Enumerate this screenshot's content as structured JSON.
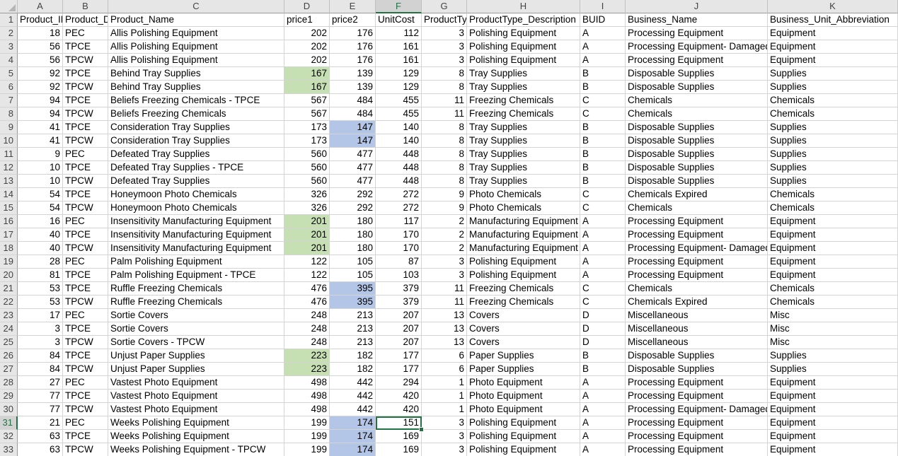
{
  "columns": [
    {
      "letter": "A"
    },
    {
      "letter": "B"
    },
    {
      "letter": "C"
    },
    {
      "letter": "D"
    },
    {
      "letter": "E"
    },
    {
      "letter": "F"
    },
    {
      "letter": "G"
    },
    {
      "letter": "H"
    },
    {
      "letter": "I"
    },
    {
      "letter": "J"
    },
    {
      "letter": "K"
    }
  ],
  "active_cell": {
    "column": "F",
    "row": 31
  },
  "highlight_colors": {
    "green": "#c6e0b4",
    "blue": "#b4c6e7",
    "selection": "#217346"
  },
  "header_row": [
    "Product_ID",
    "Product_Division",
    "Product_Name",
    "price1",
    "price2",
    "UnitCost",
    "ProductType",
    "ProductType_Description",
    "BUID",
    "Business_Name",
    "Business_Unit_Abbreviation"
  ],
  "rows": [
    {
      "n": "2",
      "v": [
        "18",
        "PEC",
        "Allis Polishing Equipment",
        "202",
        "176",
        "112",
        "3",
        "Polishing Equipment",
        "A",
        "Processing Equipment",
        "Equipment"
      ],
      "hl": {}
    },
    {
      "n": "3",
      "v": [
        "56",
        "TPCE",
        "Allis Polishing Equipment",
        "202",
        "176",
        "161",
        "3",
        "Polishing Equipment",
        "A",
        "Processing Equipment- Damaged",
        "Equipment"
      ],
      "hl": {}
    },
    {
      "n": "4",
      "v": [
        "56",
        "TPCW",
        "Allis Polishing Equipment",
        "202",
        "176",
        "161",
        "3",
        "Polishing Equipment",
        "A",
        "Processing Equipment",
        "Equipment"
      ],
      "hl": {}
    },
    {
      "n": "5",
      "v": [
        "92",
        "TPCE",
        "Behind Tray Supplies",
        "167",
        "139",
        "129",
        "8",
        "Tray Supplies",
        "B",
        "Disposable Supplies",
        "Supplies"
      ],
      "hl": {
        "3": "green"
      }
    },
    {
      "n": "6",
      "v": [
        "92",
        "TPCW",
        "Behind Tray Supplies",
        "167",
        "139",
        "129",
        "8",
        "Tray Supplies",
        "B",
        "Disposable Supplies",
        "Supplies"
      ],
      "hl": {
        "3": "green"
      }
    },
    {
      "n": "7",
      "v": [
        "94",
        "TPCE",
        "Beliefs Freezing Chemicals - TPCE",
        "567",
        "484",
        "455",
        "11",
        "Freezing Chemicals",
        "C",
        "Chemicals",
        "Chemicals"
      ],
      "hl": {}
    },
    {
      "n": "8",
      "v": [
        "94",
        "TPCW",
        "Beliefs Freezing Chemicals",
        "567",
        "484",
        "455",
        "11",
        "Freezing Chemicals",
        "C",
        "Chemicals",
        "Chemicals"
      ],
      "hl": {}
    },
    {
      "n": "9",
      "v": [
        "41",
        "TPCE",
        "Consideration Tray Supplies",
        "173",
        "147",
        "140",
        "8",
        "Tray Supplies",
        "B",
        "Disposable Supplies",
        "Supplies"
      ],
      "hl": {
        "4": "blue"
      }
    },
    {
      "n": "10",
      "v": [
        "41",
        "TPCW",
        "Consideration Tray Supplies",
        "173",
        "147",
        "140",
        "8",
        "Tray Supplies",
        "B",
        "Disposable Supplies",
        "Supplies"
      ],
      "hl": {
        "4": "blue"
      }
    },
    {
      "n": "11",
      "v": [
        "9",
        "PEC",
        "Defeated Tray Supplies",
        "560",
        "477",
        "448",
        "8",
        "Tray Supplies",
        "B",
        "Disposable Supplies",
        "Supplies"
      ],
      "hl": {}
    },
    {
      "n": "12",
      "v": [
        "10",
        "TPCE",
        "Defeated Tray Supplies - TPCE",
        "560",
        "477",
        "448",
        "8",
        "Tray Supplies",
        "B",
        "Disposable Supplies",
        "Supplies"
      ],
      "hl": {}
    },
    {
      "n": "13",
      "v": [
        "10",
        "TPCW",
        "Defeated Tray Supplies",
        "560",
        "477",
        "448",
        "8",
        "Tray Supplies",
        "B",
        "Disposable Supplies",
        "Supplies"
      ],
      "hl": {}
    },
    {
      "n": "14",
      "v": [
        "54",
        "TPCE",
        "Honeymoon Photo Chemicals",
        "326",
        "292",
        "272",
        "9",
        "Photo Chemicals",
        "C",
        "Chemicals Expired",
        "Chemicals"
      ],
      "hl": {}
    },
    {
      "n": "15",
      "v": [
        "54",
        "TPCW",
        "Honeymoon Photo Chemicals",
        "326",
        "292",
        "272",
        "9",
        "Photo Chemicals",
        "C",
        "Chemicals",
        "Chemicals"
      ],
      "hl": {}
    },
    {
      "n": "16",
      "v": [
        "16",
        "PEC",
        "Insensitivity Manufacturing Equipment",
        "201",
        "180",
        "117",
        "2",
        "Manufacturing Equipment",
        "A",
        "Processing Equipment",
        "Equipment"
      ],
      "hl": {
        "3": "green"
      }
    },
    {
      "n": "17",
      "v": [
        "40",
        "TPCE",
        "Insensitivity Manufacturing Equipment",
        "201",
        "180",
        "170",
        "2",
        "Manufacturing Equipment",
        "A",
        "Processing Equipment",
        "Equipment"
      ],
      "hl": {
        "3": "green"
      }
    },
    {
      "n": "18",
      "v": [
        "40",
        "TPCW",
        "Insensitivity Manufacturing Equipment",
        "201",
        "180",
        "170",
        "2",
        "Manufacturing Equipment",
        "A",
        "Processing Equipment- Damaged",
        "Equipment"
      ],
      "hl": {
        "3": "green"
      }
    },
    {
      "n": "19",
      "v": [
        "28",
        "PEC",
        "Palm Polishing Equipment",
        "122",
        "105",
        "87",
        "3",
        "Polishing Equipment",
        "A",
        "Processing Equipment",
        "Equipment"
      ],
      "hl": {}
    },
    {
      "n": "20",
      "v": [
        "81",
        "TPCE",
        "Palm Polishing Equipment - TPCE",
        "122",
        "105",
        "103",
        "3",
        "Polishing Equipment",
        "A",
        "Processing Equipment",
        "Equipment"
      ],
      "hl": {}
    },
    {
      "n": "21",
      "v": [
        "53",
        "TPCE",
        "Ruffle Freezing Chemicals",
        "476",
        "395",
        "379",
        "11",
        "Freezing Chemicals",
        "C",
        "Chemicals",
        "Chemicals"
      ],
      "hl": {
        "4": "blue"
      }
    },
    {
      "n": "22",
      "v": [
        "53",
        "TPCW",
        "Ruffle Freezing Chemicals",
        "476",
        "395",
        "379",
        "11",
        "Freezing Chemicals",
        "C",
        "Chemicals Expired",
        "Chemicals"
      ],
      "hl": {
        "4": "blue"
      }
    },
    {
      "n": "23",
      "v": [
        "17",
        "PEC",
        "Sortie Covers",
        "248",
        "213",
        "207",
        "13",
        "Covers",
        "D",
        "Miscellaneous",
        "Misc"
      ],
      "hl": {}
    },
    {
      "n": "24",
      "v": [
        "3",
        "TPCE",
        "Sortie Covers",
        "248",
        "213",
        "207",
        "13",
        "Covers",
        "D",
        "Miscellaneous",
        "Misc"
      ],
      "hl": {}
    },
    {
      "n": "25",
      "v": [
        "3",
        "TPCW",
        "Sortie Covers - TPCW",
        "248",
        "213",
        "207",
        "13",
        "Covers",
        "D",
        "Miscellaneous",
        "Misc"
      ],
      "hl": {}
    },
    {
      "n": "26",
      "v": [
        "84",
        "TPCE",
        "Unjust Paper Supplies",
        "223",
        "182",
        "177",
        "6",
        "Paper Supplies",
        "B",
        "Disposable Supplies",
        "Supplies"
      ],
      "hl": {
        "3": "green"
      }
    },
    {
      "n": "27",
      "v": [
        "84",
        "TPCW",
        "Unjust Paper Supplies",
        "223",
        "182",
        "177",
        "6",
        "Paper Supplies",
        "B",
        "Disposable Supplies",
        "Supplies"
      ],
      "hl": {
        "3": "green"
      }
    },
    {
      "n": "28",
      "v": [
        "27",
        "PEC",
        "Vastest Photo Equipment",
        "498",
        "442",
        "294",
        "1",
        "Photo Equipment",
        "A",
        "Processing Equipment",
        "Equipment"
      ],
      "hl": {}
    },
    {
      "n": "29",
      "v": [
        "77",
        "TPCE",
        "Vastest Photo Equipment",
        "498",
        "442",
        "420",
        "1",
        "Photo Equipment",
        "A",
        "Processing Equipment",
        "Equipment"
      ],
      "hl": {}
    },
    {
      "n": "30",
      "v": [
        "77",
        "TPCW",
        "Vastest Photo Equipment",
        "498",
        "442",
        "420",
        "1",
        "Photo Equipment",
        "A",
        "Processing Equipment- Damaged",
        "Equipment"
      ],
      "hl": {}
    },
    {
      "n": "31",
      "v": [
        "21",
        "PEC",
        "Weeks Polishing Equipment",
        "199",
        "174",
        "151",
        "3",
        "Polishing Equipment",
        "A",
        "Processing Equipment",
        "Equipment"
      ],
      "hl": {
        "4": "blue"
      }
    },
    {
      "n": "32",
      "v": [
        "63",
        "TPCE",
        "Weeks Polishing Equipment",
        "199",
        "174",
        "169",
        "3",
        "Polishing Equipment",
        "A",
        "Processing Equipment",
        "Equipment"
      ],
      "hl": {
        "4": "blue"
      }
    },
    {
      "n": "33",
      "v": [
        "63",
        "TPCW",
        "Weeks Polishing Equipment - TPCW",
        "199",
        "174",
        "169",
        "3",
        "Polishing Equipment",
        "A",
        "Processing Equipment",
        "Equipment"
      ],
      "hl": {
        "4": "blue"
      }
    }
  ]
}
